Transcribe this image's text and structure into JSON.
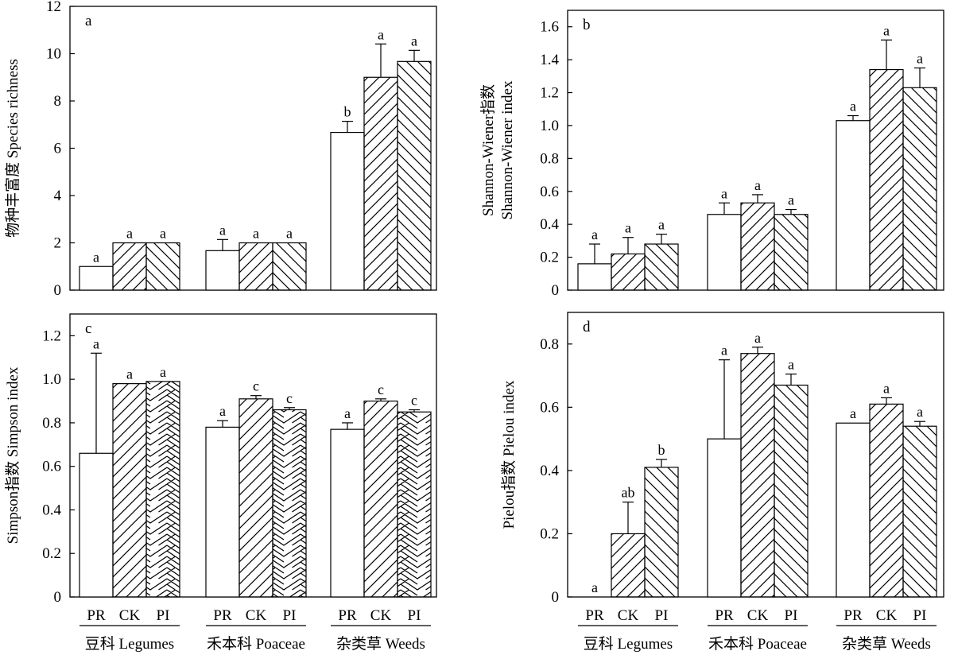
{
  "chart_data": [
    {
      "type": "bar",
      "panel": "a",
      "ylabel": "物种丰富度 Species richness",
      "ylabel_lines": [
        "物种丰富度 Species richness"
      ],
      "ylim": [
        0,
        12
      ],
      "yticks": [
        0,
        2,
        4,
        6,
        8,
        10,
        12
      ],
      "tick_format": "int",
      "categories": [
        "豆科 Legumes",
        "禾本科 Poaceae",
        "杂类草 Weeds"
      ],
      "series": [
        {
          "name": "PR",
          "pattern": "none",
          "values": [
            1.0,
            1.67,
            6.67
          ],
          "errors": [
            0,
            0.47,
            0.47
          ],
          "letters": [
            "a",
            "a",
            "b"
          ]
        },
        {
          "name": "CK",
          "pattern": "fwd",
          "values": [
            2.0,
            2.0,
            9.0
          ],
          "errors": [
            0,
            0,
            1.41
          ],
          "letters": [
            "a",
            "a",
            "a"
          ]
        },
        {
          "name": "PI",
          "pattern": "bwd",
          "values": [
            2.0,
            2.0,
            9.67
          ],
          "errors": [
            0,
            0,
            0.47
          ],
          "letters": [
            "a",
            "a",
            "a"
          ]
        }
      ]
    },
    {
      "type": "bar",
      "panel": "b",
      "ylabel": "Shannon-Wiener指数 Shannon-Wiener index",
      "ylabel_lines": [
        "Shannon-Wiener指数",
        "Shannon-Wiener index"
      ],
      "ylim": [
        0,
        1.7
      ],
      "yticks": [
        0,
        0.2,
        0.4,
        0.6,
        0.8,
        1.0,
        1.2,
        1.4,
        1.6
      ],
      "tick_format": "one",
      "categories": [
        "豆科 Legumes",
        "禾本科 Poaceae",
        "杂类草 Weeds"
      ],
      "series": [
        {
          "name": "PR",
          "pattern": "none",
          "values": [
            0.16,
            0.46,
            1.03
          ],
          "errors": [
            0.12,
            0.07,
            0.03
          ],
          "letters": [
            "a",
            "a",
            "a"
          ]
        },
        {
          "name": "CK",
          "pattern": "fwd",
          "values": [
            0.22,
            0.53,
            1.34
          ],
          "errors": [
            0.1,
            0.05,
            0.18
          ],
          "letters": [
            "a",
            "a",
            "a"
          ]
        },
        {
          "name": "PI",
          "pattern": "bwd",
          "values": [
            0.28,
            0.46,
            1.23
          ],
          "errors": [
            0.06,
            0.03,
            0.12
          ],
          "letters": [
            "a",
            "a",
            "a"
          ]
        }
      ]
    },
    {
      "type": "bar",
      "panel": "c",
      "ylabel": "Simpson指数 Simpson index",
      "ylabel_lines": [
        "Simpson指数 Simpson index"
      ],
      "ylim": [
        0,
        1.3
      ],
      "yticks": [
        0,
        0.2,
        0.4,
        0.6,
        0.8,
        1.0,
        1.2
      ],
      "tick_format": "one",
      "categories": [
        "豆科 Legumes",
        "禾本科 Poaceae",
        "杂类草 Weeds"
      ],
      "series": [
        {
          "name": "PR",
          "pattern": "none",
          "values": [
            0.66,
            0.78,
            0.77
          ],
          "errors": [
            0.46,
            0.03,
            0.03
          ],
          "letters": [
            "a",
            "a",
            "a"
          ]
        },
        {
          "name": "CK",
          "pattern": "fwd",
          "values": [
            0.98,
            0.91,
            0.9
          ],
          "errors": [
            0,
            0.015,
            0.01
          ],
          "letters": [
            "a",
            "c",
            "c"
          ]
        },
        {
          "name": "PI",
          "pattern": "chev",
          "values": [
            0.99,
            0.86,
            0.85
          ],
          "errors": [
            0,
            0.01,
            0.01
          ],
          "letters": [
            "a",
            "c",
            "c"
          ]
        }
      ]
    },
    {
      "type": "bar",
      "panel": "d",
      "ylabel": "Pielou指数 Pielou index",
      "ylabel_lines": [
        "Pielou指数 Pielou index"
      ],
      "ylim": [
        0,
        0.9
      ],
      "yticks": [
        0,
        0.2,
        0.4,
        0.6,
        0.8
      ],
      "tick_format": "one",
      "categories": [
        "豆科 Legumes",
        "禾本科 Poaceae",
        "杂类草 Weeds"
      ],
      "series": [
        {
          "name": "PR",
          "pattern": "none",
          "values": [
            0,
            0.5,
            0.55
          ],
          "errors": [
            0,
            0.25,
            0
          ],
          "letters": [
            "a",
            "a",
            "a"
          ]
        },
        {
          "name": "CK",
          "pattern": "fwd",
          "values": [
            0.2,
            0.77,
            0.61
          ],
          "errors": [
            0.1,
            0.02,
            0.02
          ],
          "letters": [
            "ab",
            "a",
            "a"
          ]
        },
        {
          "name": "PI",
          "pattern": "bwd",
          "values": [
            0.41,
            0.67,
            0.54
          ],
          "errors": [
            0.025,
            0.035,
            0.015
          ],
          "letters": [
            "b",
            "a",
            "a"
          ]
        }
      ]
    }
  ]
}
